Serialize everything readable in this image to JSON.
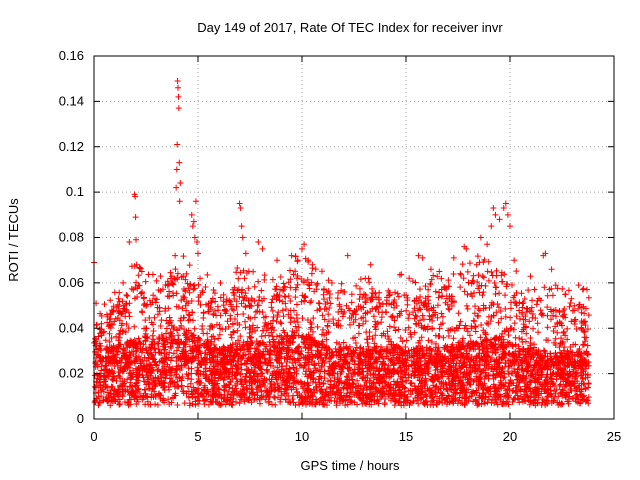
{
  "chart_data": {
    "type": "scatter",
    "title": "Day 149 of 2017, Rate Of TEC Index for receiver invr",
    "xlabel": "GPS time / hours",
    "ylabel": "ROTI / TECUs",
    "xlim": [
      0,
      25
    ],
    "ylim": [
      0,
      0.16
    ],
    "x_ticks": [
      "0",
      "5",
      "10",
      "15",
      "20",
      "25"
    ],
    "y_ticks": [
      "0",
      "0.02",
      "0.04",
      "0.06",
      "0.08",
      "0.1",
      "0.12",
      "0.14",
      "0.16"
    ],
    "grid": true,
    "marker": "+",
    "color": "#ff0000",
    "data_extent_hours": [
      0,
      23.8
    ],
    "envelope": [
      [
        0,
        0.024,
        0.04
      ],
      [
        0.5,
        0.02,
        0.045
      ],
      [
        1,
        0.02,
        0.05
      ],
      [
        1.5,
        0.022,
        0.055
      ],
      [
        2,
        0.024,
        0.062
      ],
      [
        2.5,
        0.024,
        0.056
      ],
      [
        3,
        0.024,
        0.056
      ],
      [
        3.5,
        0.026,
        0.06
      ],
      [
        4,
        0.026,
        0.068
      ],
      [
        4.5,
        0.026,
        0.062
      ],
      [
        5,
        0.024,
        0.06
      ],
      [
        5.5,
        0.022,
        0.056
      ],
      [
        6,
        0.02,
        0.052
      ],
      [
        6.5,
        0.02,
        0.056
      ],
      [
        7,
        0.022,
        0.06
      ],
      [
        7.5,
        0.022,
        0.058
      ],
      [
        8,
        0.022,
        0.058
      ],
      [
        8.5,
        0.022,
        0.056
      ],
      [
        9,
        0.024,
        0.06
      ],
      [
        9.5,
        0.026,
        0.064
      ],
      [
        10,
        0.026,
        0.066
      ],
      [
        10.5,
        0.024,
        0.062
      ],
      [
        11,
        0.022,
        0.058
      ],
      [
        11.5,
        0.02,
        0.054
      ],
      [
        12,
        0.02,
        0.054
      ],
      [
        12.5,
        0.02,
        0.055
      ],
      [
        13,
        0.02,
        0.056
      ],
      [
        13.5,
        0.02,
        0.056
      ],
      [
        14,
        0.02,
        0.056
      ],
      [
        14.5,
        0.02,
        0.056
      ],
      [
        15,
        0.02,
        0.058
      ],
      [
        15.5,
        0.02,
        0.056
      ],
      [
        16,
        0.02,
        0.056
      ],
      [
        16.5,
        0.02,
        0.058
      ],
      [
        17,
        0.02,
        0.06
      ],
      [
        17.5,
        0.02,
        0.06
      ],
      [
        18,
        0.022,
        0.062
      ],
      [
        18.5,
        0.022,
        0.064
      ],
      [
        19,
        0.024,
        0.066
      ],
      [
        19.5,
        0.024,
        0.066
      ],
      [
        20,
        0.022,
        0.06
      ],
      [
        20.5,
        0.02,
        0.056
      ],
      [
        21,
        0.02,
        0.055
      ],
      [
        21.5,
        0.018,
        0.052
      ],
      [
        22,
        0.018,
        0.05
      ],
      [
        22.5,
        0.018,
        0.05
      ],
      [
        23,
        0.018,
        0.052
      ],
      [
        23.5,
        0.018,
        0.05
      ],
      [
        23.8,
        0.018,
        0.048
      ]
    ],
    "spikes": [
      [
        0.0,
        0.069
      ],
      [
        0.1,
        0.051
      ],
      [
        1.4,
        0.06
      ],
      [
        1.7,
        0.078
      ],
      [
        1.95,
        0.099
      ],
      [
        1.98,
        0.098
      ],
      [
        2.0,
        0.089
      ],
      [
        2.02,
        0.079
      ],
      [
        2.05,
        0.068
      ],
      [
        2.3,
        0.065
      ],
      [
        3.2,
        0.063
      ],
      [
        3.9,
        0.072
      ],
      [
        3.95,
        0.102
      ],
      [
        3.98,
        0.11
      ],
      [
        4.0,
        0.121
      ],
      [
        4.02,
        0.149
      ],
      [
        4.04,
        0.146
      ],
      [
        4.06,
        0.142
      ],
      [
        4.08,
        0.137
      ],
      [
        4.1,
        0.113
      ],
      [
        4.12,
        0.096
      ],
      [
        4.15,
        0.104
      ],
      [
        4.7,
        0.09
      ],
      [
        4.75,
        0.085
      ],
      [
        4.8,
        0.087
      ],
      [
        4.85,
        0.08
      ],
      [
        4.9,
        0.096
      ],
      [
        4.95,
        0.078
      ],
      [
        5.0,
        0.073
      ],
      [
        7.0,
        0.095
      ],
      [
        7.05,
        0.093
      ],
      [
        7.1,
        0.085
      ],
      [
        7.15,
        0.08
      ],
      [
        7.3,
        0.073
      ],
      [
        7.9,
        0.078
      ],
      [
        8.1,
        0.075
      ],
      [
        8.8,
        0.07
      ],
      [
        9.5,
        0.072
      ],
      [
        9.8,
        0.07
      ],
      [
        10.0,
        0.075
      ],
      [
        10.1,
        0.077
      ],
      [
        10.3,
        0.07
      ],
      [
        10.5,
        0.068
      ],
      [
        12.2,
        0.072
      ],
      [
        13.3,
        0.068
      ],
      [
        15.6,
        0.072
      ],
      [
        15.8,
        0.071
      ],
      [
        16.2,
        0.066
      ],
      [
        16.6,
        0.065
      ],
      [
        17.3,
        0.071
      ],
      [
        17.8,
        0.076
      ],
      [
        17.9,
        0.075
      ],
      [
        18.4,
        0.068
      ],
      [
        18.6,
        0.08
      ],
      [
        18.9,
        0.077
      ],
      [
        19.1,
        0.085
      ],
      [
        19.2,
        0.093
      ],
      [
        19.3,
        0.09
      ],
      [
        19.5,
        0.088
      ],
      [
        19.7,
        0.093
      ],
      [
        19.8,
        0.095
      ],
      [
        19.9,
        0.09
      ],
      [
        20.0,
        0.085
      ],
      [
        20.2,
        0.07
      ],
      [
        21.6,
        0.072
      ],
      [
        21.7,
        0.073
      ],
      [
        22.0,
        0.066
      ],
      [
        22.2,
        0.059
      ],
      [
        23.3,
        0.059
      ],
      [
        23.5,
        0.057
      ],
      [
        23.7,
        0.057
      ]
    ]
  }
}
